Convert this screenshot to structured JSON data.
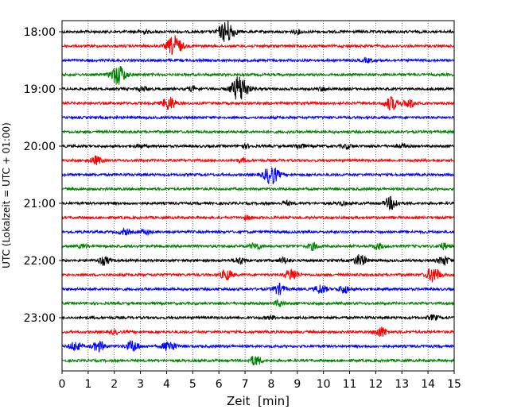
{
  "chart_data": {
    "type": "line",
    "title": "",
    "xlabel": "Zeit  [min]",
    "ylabel": "UTC (Lokalzeit = UTC + 01:00)",
    "xlim": [
      0,
      15
    ],
    "x_ticks": [
      "0",
      "1",
      "2",
      "3",
      "4",
      "5",
      "6",
      "7",
      "8",
      "9",
      "10",
      "11",
      "12",
      "13",
      "14",
      "15"
    ],
    "y_tick_labels": [
      "18:00",
      "19:00",
      "20:00",
      "21:00",
      "22:00",
      "23:00"
    ],
    "y_tick_trace_index": [
      0,
      4,
      8,
      12,
      16,
      20
    ],
    "grid": "vertical dotted lines at every minute",
    "trace_interval_minutes": 15,
    "trace_colors": [
      "#000000",
      "#ff0000",
      "#0000ff",
      "#008000"
    ],
    "traces": [
      {
        "start": "18:00",
        "color": "#000000",
        "events": [
          {
            "t": 6.3,
            "amp": 1.0
          },
          {
            "t": 3.1,
            "amp": 0.15
          },
          {
            "t": 9.0,
            "amp": 0.15
          }
        ]
      },
      {
        "start": "18:15",
        "color": "#ff0000",
        "events": [
          {
            "t": 4.3,
            "amp": 0.9
          }
        ]
      },
      {
        "start": "18:30",
        "color": "#0000ff",
        "events": [
          {
            "t": 11.7,
            "amp": 0.15
          }
        ]
      },
      {
        "start": "18:45",
        "color": "#008000",
        "events": [
          {
            "t": 2.15,
            "amp": 0.9
          }
        ]
      },
      {
        "start": "19:00",
        "color": "#000000",
        "events": [
          {
            "t": 6.8,
            "amp": 1.2
          },
          {
            "t": 3.1,
            "amp": 0.2
          },
          {
            "t": 5.0,
            "amp": 0.2
          },
          {
            "t": 10.0,
            "amp": 0.15
          }
        ]
      },
      {
        "start": "19:15",
        "color": "#ff0000",
        "events": [
          {
            "t": 4.1,
            "amp": 0.6
          },
          {
            "t": 12.6,
            "amp": 0.6
          },
          {
            "t": 13.3,
            "amp": 0.4
          }
        ]
      },
      {
        "start": "19:30",
        "color": "#0000ff",
        "events": []
      },
      {
        "start": "19:45",
        "color": "#008000",
        "events": []
      },
      {
        "start": "20:00",
        "color": "#000000",
        "events": [
          {
            "t": 3.0,
            "amp": 0.15
          },
          {
            "t": 7.0,
            "amp": 0.15
          },
          {
            "t": 9.1,
            "amp": 0.2
          },
          {
            "t": 10.9,
            "amp": 0.2
          },
          {
            "t": 13.0,
            "amp": 0.15
          }
        ]
      },
      {
        "start": "20:15",
        "color": "#ff0000",
        "events": [
          {
            "t": 1.3,
            "amp": 0.35
          },
          {
            "t": 6.9,
            "amp": 0.15
          }
        ]
      },
      {
        "start": "20:30",
        "color": "#0000ff",
        "events": [
          {
            "t": 8.0,
            "amp": 0.85
          }
        ]
      },
      {
        "start": "20:45",
        "color": "#008000",
        "events": []
      },
      {
        "start": "21:00",
        "color": "#000000",
        "events": [
          {
            "t": 12.6,
            "amp": 0.55
          },
          {
            "t": 8.6,
            "amp": 0.15
          },
          {
            "t": 10.7,
            "amp": 0.15
          }
        ]
      },
      {
        "start": "21:15",
        "color": "#ff0000",
        "events": [
          {
            "t": 7.1,
            "amp": 0.15
          }
        ]
      },
      {
        "start": "21:30",
        "color": "#0000ff",
        "events": [
          {
            "t": 2.4,
            "amp": 0.25
          },
          {
            "t": 3.2,
            "amp": 0.2
          }
        ]
      },
      {
        "start": "21:45",
        "color": "#008000",
        "events": [
          {
            "t": 0.8,
            "amp": 0.15
          },
          {
            "t": 7.4,
            "amp": 0.3
          },
          {
            "t": 9.6,
            "amp": 0.3
          },
          {
            "t": 12.1,
            "amp": 0.25
          },
          {
            "t": 14.6,
            "amp": 0.25
          }
        ]
      },
      {
        "start": "22:00",
        "color": "#000000",
        "events": [
          {
            "t": 1.6,
            "amp": 0.35
          },
          {
            "t": 6.8,
            "amp": 0.3
          },
          {
            "t": 8.5,
            "amp": 0.25
          },
          {
            "t": 11.4,
            "amp": 0.5
          },
          {
            "t": 14.6,
            "amp": 0.4
          }
        ]
      },
      {
        "start": "22:15",
        "color": "#ff0000",
        "events": [
          {
            "t": 6.3,
            "amp": 0.45
          },
          {
            "t": 8.8,
            "amp": 0.55
          },
          {
            "t": 14.2,
            "amp": 0.7
          }
        ]
      },
      {
        "start": "22:30",
        "color": "#0000ff",
        "events": [
          {
            "t": 8.3,
            "amp": 0.45
          },
          {
            "t": 9.9,
            "amp": 0.4
          },
          {
            "t": 10.8,
            "amp": 0.35
          }
        ]
      },
      {
        "start": "22:45",
        "color": "#008000",
        "events": [
          {
            "t": 8.3,
            "amp": 0.25
          }
        ]
      },
      {
        "start": "23:00",
        "color": "#000000",
        "events": [
          {
            "t": 8.0,
            "amp": 0.15
          },
          {
            "t": 14.2,
            "amp": 0.2
          }
        ]
      },
      {
        "start": "23:15",
        "color": "#ff0000",
        "events": [
          {
            "t": 12.2,
            "amp": 0.45
          },
          {
            "t": 2.0,
            "amp": 0.15
          }
        ]
      },
      {
        "start": "23:30",
        "color": "#0000ff",
        "events": [
          {
            "t": 0.5,
            "amp": 0.4
          },
          {
            "t": 1.4,
            "amp": 0.45
          },
          {
            "t": 2.7,
            "amp": 0.5
          },
          {
            "t": 4.1,
            "amp": 0.5
          }
        ]
      },
      {
        "start": "23:45",
        "color": "#008000",
        "events": [
          {
            "t": 7.4,
            "amp": 0.45
          }
        ]
      }
    ]
  }
}
